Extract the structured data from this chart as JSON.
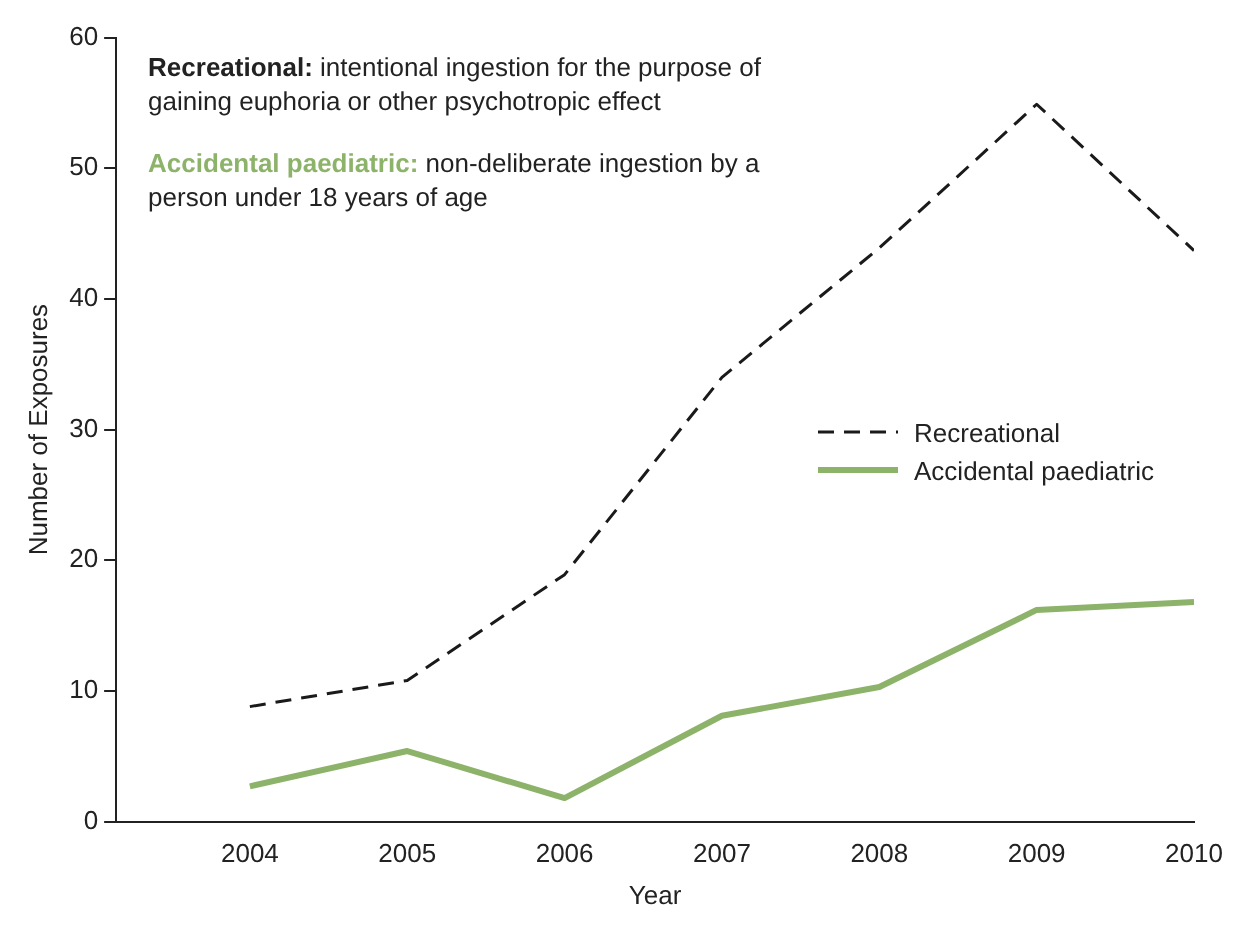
{
  "chart_data": {
    "type": "line",
    "xlabel": "Year",
    "ylabel": "Number of Exposures",
    "x": [
      2004,
      2005,
      2006,
      2007,
      2008,
      2009,
      2010
    ],
    "xlim": [
      2003.15,
      2010
    ],
    "xticks": [
      2004,
      2005,
      2006,
      2007,
      2008,
      2009,
      2010
    ],
    "ylim": [
      0,
      60
    ],
    "yticks": [
      0,
      10,
      20,
      30,
      40,
      50,
      60
    ],
    "series": [
      {
        "name": "Recreational",
        "color": "#1a1a1a",
        "line_style": "dashed",
        "values": [
          8.8,
          10.8,
          18.9,
          34,
          43.9,
          54.9,
          43.7
        ]
      },
      {
        "name": "Accidental paediatric",
        "color": "#8db36a",
        "line_style": "solid",
        "values": [
          2.7,
          5.4,
          1.8,
          8.1,
          10.3,
          16.2,
          16.8
        ]
      }
    ],
    "annotations": [
      "Recreational: intentional ingestion for the purpose of gaining euphoria or other psychotropic effect",
      "Accidental paediatric: non-deliberate ingestion by a person under 18 years of age"
    ],
    "marker": "none",
    "grid": false,
    "legend": "right"
  }
}
